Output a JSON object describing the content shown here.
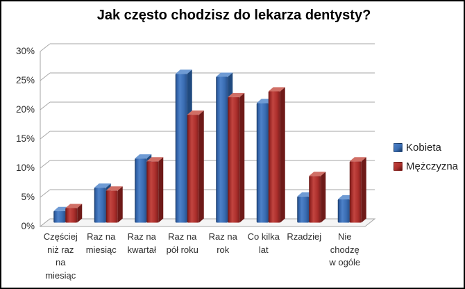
{
  "chart_data": {
    "type": "bar",
    "style": "3d-clustered-column",
    "title": "Jak często chodzisz do lekarza dentysty?",
    "xlabel": "",
    "ylabel": "",
    "ylim": [
      0,
      30
    ],
    "grid": true,
    "legend_position": "right",
    "yticks": [
      "0%",
      "5%",
      "10%",
      "15%",
      "20%",
      "25%",
      "30%"
    ],
    "categories": [
      "Częściej niż raz na miesiąc",
      "Raz na miesiąc",
      "Raz na kwartał",
      "Raz na pół roku",
      "Raz na rok",
      "Co kilka lat",
      "Rzadziej",
      "Nie chodzę w ogóle"
    ],
    "category_display": [
      "Częściej\nniż raz\nna\nmiesiąc",
      "Raz na\nmiesiąc",
      "Raz na\nkwartał",
      "Raz na\npół roku",
      "Raz na\nrok",
      "Co kilka\nlat",
      "Rzadziej",
      "Nie\nchodzę\nw ogóle"
    ],
    "series": [
      {
        "name": "Kobieta",
        "values": [
          2,
          6,
          11,
          25.5,
          25,
          20.5,
          4.5,
          4
        ],
        "color": "#3a6db3",
        "colors": {
          "edge": "#17365e",
          "mid": "#2f5fa5",
          "light": "#4d81c8",
          "main": "#3a6db3",
          "dark": "#27508b",
          "top": "#6f9bd4",
          "side": "#204a7f"
        }
      },
      {
        "name": "Mężczyzna",
        "values": [
          2.5,
          5.5,
          10.5,
          18.5,
          21.5,
          22.5,
          8,
          10.5
        ],
        "color": "#ac2f2c",
        "colors": {
          "edge": "#5e1312",
          "mid": "#962523",
          "light": "#c24540",
          "main": "#ac2f2c",
          "dark": "#7c1e1d",
          "top": "#d06f66",
          "side": "#6e1a18"
        }
      }
    ],
    "gridline_color": "#a6a6a6",
    "floor_fill": "#f5f5f5"
  }
}
